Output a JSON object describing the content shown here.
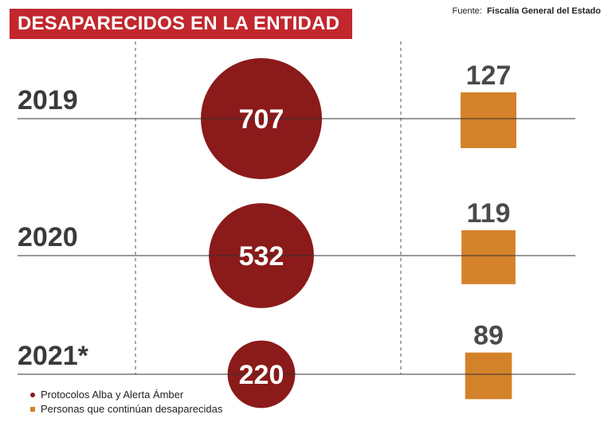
{
  "header": {
    "title": "DESAPARECIDOS EN LA ENTIDAD",
    "source_label": "Fuente:",
    "source_name": "Fiscalía General del Estado"
  },
  "legend": {
    "item_1": "Protocolos Alba y Alerta Ámber",
    "item_2": "Personas que continúan desaparecidas"
  },
  "colors": {
    "title_bg": "#c1272d",
    "circle": "#8b1a1a",
    "square": "#d4822a",
    "year_text": "#3a3a3a",
    "value_text": "#4a4a4a"
  },
  "chart_data": {
    "type": "bubble",
    "categories": [
      "2019",
      "2020",
      "2021*"
    ],
    "series": [
      {
        "name": "Protocolos Alba y Alerta Ámber",
        "shape": "circle",
        "values": [
          707,
          532,
          220
        ]
      },
      {
        "name": "Personas que continúan desaparecidas",
        "shape": "square",
        "values": [
          127,
          119,
          89
        ]
      }
    ]
  }
}
